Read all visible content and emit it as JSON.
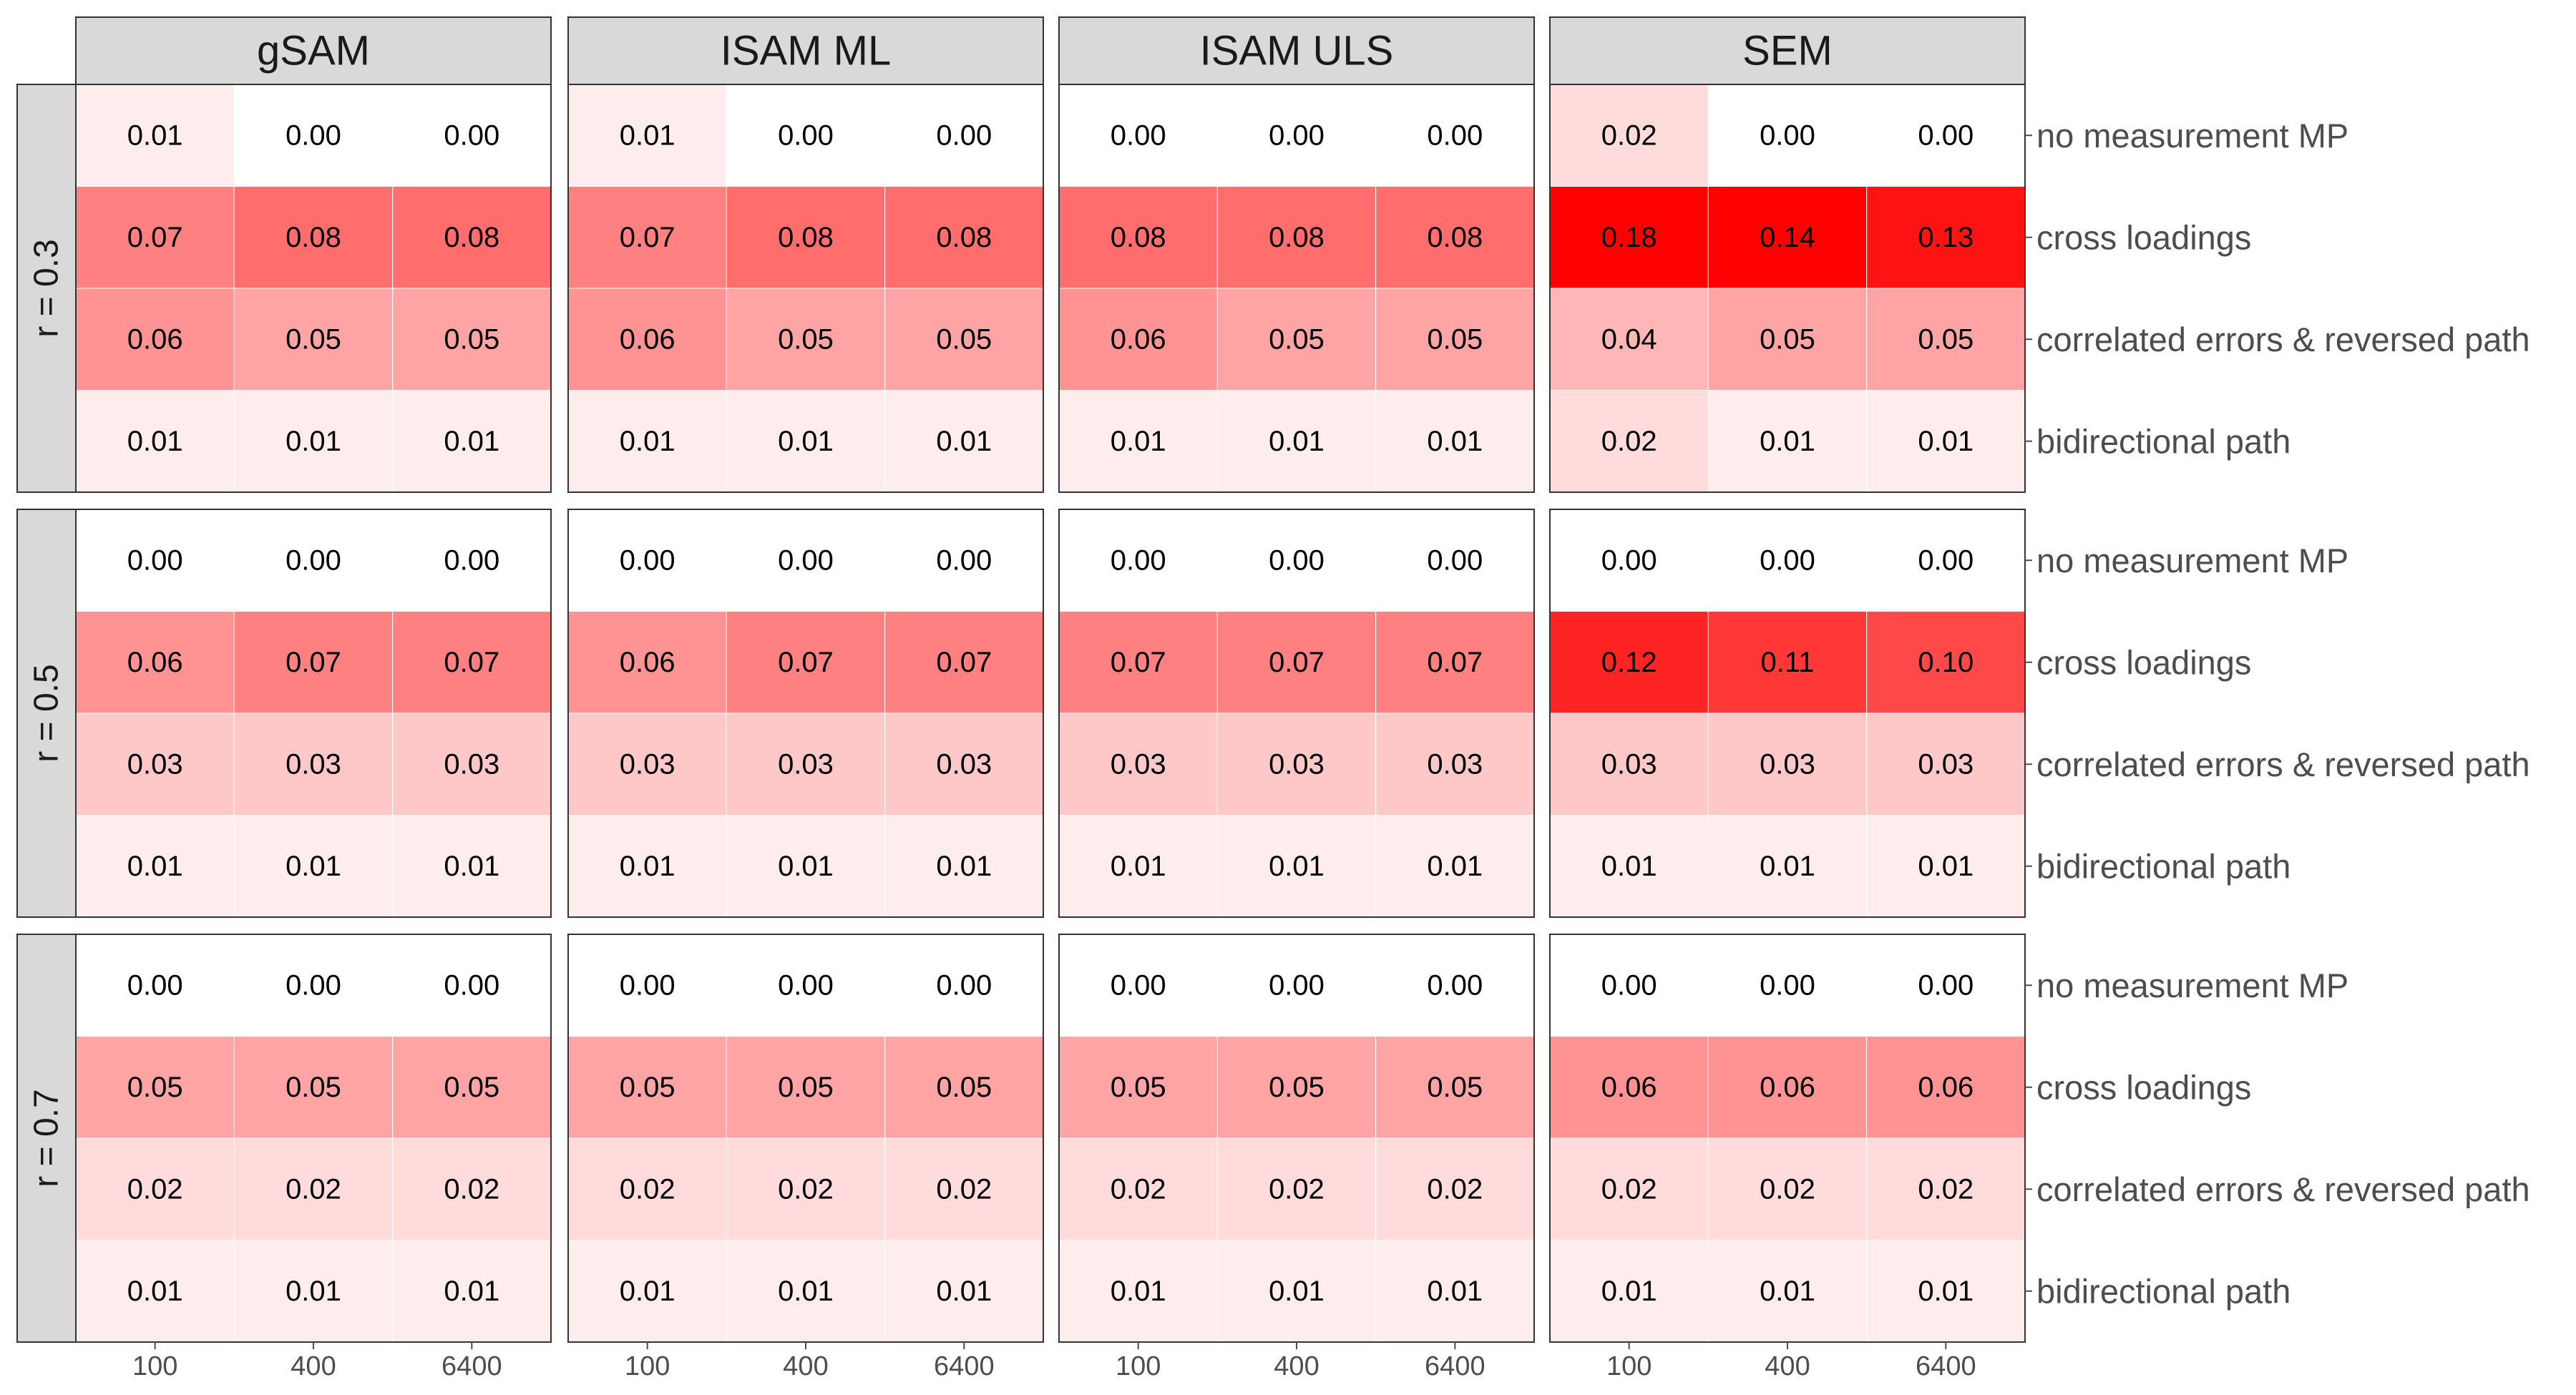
{
  "chart_data": {
    "type": "heatmap",
    "title": "",
    "xlabel": "",
    "ylabel": "",
    "column_facets": [
      "gSAM",
      "ISAM ML",
      "ISAM ULS",
      "SEM"
    ],
    "row_facets": [
      "r = 0.3",
      "r = 0.5",
      "r = 0.7"
    ],
    "x_categories": [
      "100",
      "400",
      "6400"
    ],
    "y_categories": [
      "no measurement MP",
      "cross loadings",
      "correlated errors & reversed path",
      "bidirectional path"
    ],
    "color_scale": {
      "low": "#ffffff",
      "high": "#ff0000",
      "range": [
        0,
        0.14
      ]
    },
    "grid": false,
    "cells": [
      {
        "row_facet": "r = 0.3",
        "col_facet": "gSAM",
        "values": [
          [
            0.01,
            0.0,
            0.0
          ],
          [
            0.07,
            0.08,
            0.08
          ],
          [
            0.06,
            0.05,
            0.05
          ],
          [
            0.01,
            0.01,
            0.01
          ]
        ],
        "labels": [
          [
            "0.01",
            "0.00",
            "0.00"
          ],
          [
            "0.07",
            "0.08",
            "0.08"
          ],
          [
            "0.06",
            "0.05",
            "0.05"
          ],
          [
            "0.01",
            "0.01",
            "0.01"
          ]
        ]
      },
      {
        "row_facet": "r = 0.3",
        "col_facet": "ISAM ML",
        "values": [
          [
            0.01,
            0.0,
            0.0
          ],
          [
            0.07,
            0.08,
            0.08
          ],
          [
            0.06,
            0.05,
            0.05
          ],
          [
            0.01,
            0.01,
            0.01
          ]
        ],
        "labels": [
          [
            "0.01",
            "0.00",
            "0.00"
          ],
          [
            "0.07",
            "0.08",
            "0.08"
          ],
          [
            "0.06",
            "0.05",
            "0.05"
          ],
          [
            "0.01",
            "0.01",
            "0.01"
          ]
        ]
      },
      {
        "row_facet": "r = 0.3",
        "col_facet": "ISAM ULS",
        "values": [
          [
            0.0,
            0.0,
            0.0
          ],
          [
            0.08,
            0.08,
            0.08
          ],
          [
            0.06,
            0.05,
            0.05
          ],
          [
            0.01,
            0.01,
            0.01
          ]
        ],
        "labels": [
          [
            "0.00",
            "0.00",
            "0.00"
          ],
          [
            "0.08",
            "0.08",
            "0.08"
          ],
          [
            "0.06",
            "0.05",
            "0.05"
          ],
          [
            "0.01",
            "0.01",
            "0.01"
          ]
        ]
      },
      {
        "row_facet": "r = 0.3",
        "col_facet": "SEM",
        "values": [
          [
            0.02,
            0.0,
            0.0
          ],
          [
            0.18,
            0.14,
            0.13
          ],
          [
            0.04,
            0.05,
            0.05
          ],
          [
            0.02,
            0.01,
            0.01
          ]
        ],
        "labels": [
          [
            "0.02",
            "0.00",
            "0.00"
          ],
          [
            "0.18",
            "0.14",
            "0.13"
          ],
          [
            "0.04",
            "0.05",
            "0.05"
          ],
          [
            "0.02",
            "0.01",
            "0.01"
          ]
        ]
      },
      {
        "row_facet": "r = 0.5",
        "col_facet": "gSAM",
        "values": [
          [
            0.0,
            0.0,
            0.0
          ],
          [
            0.06,
            0.07,
            0.07
          ],
          [
            0.03,
            0.03,
            0.03
          ],
          [
            0.01,
            0.01,
            0.01
          ]
        ],
        "labels": [
          [
            "0.00",
            "0.00",
            "0.00"
          ],
          [
            "0.06",
            "0.07",
            "0.07"
          ],
          [
            "0.03",
            "0.03",
            "0.03"
          ],
          [
            "0.01",
            "0.01",
            "0.01"
          ]
        ]
      },
      {
        "row_facet": "r = 0.5",
        "col_facet": "ISAM ML",
        "values": [
          [
            0.0,
            0.0,
            0.0
          ],
          [
            0.06,
            0.07,
            0.07
          ],
          [
            0.03,
            0.03,
            0.03
          ],
          [
            0.01,
            0.01,
            0.01
          ]
        ],
        "labels": [
          [
            "0.00",
            "0.00",
            "0.00"
          ],
          [
            "0.06",
            "0.07",
            "0.07"
          ],
          [
            "0.03",
            "0.03",
            "0.03"
          ],
          [
            "0.01",
            "0.01",
            "0.01"
          ]
        ]
      },
      {
        "row_facet": "r = 0.5",
        "col_facet": "ISAM ULS",
        "values": [
          [
            0.0,
            0.0,
            0.0
          ],
          [
            0.07,
            0.07,
            0.07
          ],
          [
            0.03,
            0.03,
            0.03
          ],
          [
            0.01,
            0.01,
            0.01
          ]
        ],
        "labels": [
          [
            "0.00",
            "0.00",
            "0.00"
          ],
          [
            "0.07",
            "0.07",
            "0.07"
          ],
          [
            "0.03",
            "0.03",
            "0.03"
          ],
          [
            "0.01",
            "0.01",
            "0.01"
          ]
        ]
      },
      {
        "row_facet": "r = 0.5",
        "col_facet": "SEM",
        "values": [
          [
            0.0,
            0.0,
            0.0
          ],
          [
            0.12,
            0.11,
            0.1
          ],
          [
            0.03,
            0.03,
            0.03
          ],
          [
            0.01,
            0.01,
            0.01
          ]
        ],
        "labels": [
          [
            "0.00",
            "0.00",
            "0.00"
          ],
          [
            "0.12",
            "0.11",
            "0.10"
          ],
          [
            "0.03",
            "0.03",
            "0.03"
          ],
          [
            "0.01",
            "0.01",
            "0.01"
          ]
        ]
      },
      {
        "row_facet": "r = 0.7",
        "col_facet": "gSAM",
        "values": [
          [
            0.0,
            0.0,
            0.0
          ],
          [
            0.05,
            0.05,
            0.05
          ],
          [
            0.02,
            0.02,
            0.02
          ],
          [
            0.01,
            0.01,
            0.01
          ]
        ],
        "labels": [
          [
            "0.00",
            "0.00",
            "0.00"
          ],
          [
            "0.05",
            "0.05",
            "0.05"
          ],
          [
            "0.02",
            "0.02",
            "0.02"
          ],
          [
            "0.01",
            "0.01",
            "0.01"
          ]
        ]
      },
      {
        "row_facet": "r = 0.7",
        "col_facet": "ISAM ML",
        "values": [
          [
            0.0,
            0.0,
            0.0
          ],
          [
            0.05,
            0.05,
            0.05
          ],
          [
            0.02,
            0.02,
            0.02
          ],
          [
            0.01,
            0.01,
            0.01
          ]
        ],
        "labels": [
          [
            "0.00",
            "0.00",
            "0.00"
          ],
          [
            "0.05",
            "0.05",
            "0.05"
          ],
          [
            "0.02",
            "0.02",
            "0.02"
          ],
          [
            "0.01",
            "0.01",
            "0.01"
          ]
        ]
      },
      {
        "row_facet": "r = 0.7",
        "col_facet": "ISAM ULS",
        "values": [
          [
            0.0,
            0.0,
            0.0
          ],
          [
            0.05,
            0.05,
            0.05
          ],
          [
            0.02,
            0.02,
            0.02
          ],
          [
            0.01,
            0.01,
            0.01
          ]
        ],
        "labels": [
          [
            "0.00",
            "0.00",
            "0.00"
          ],
          [
            "0.05",
            "0.05",
            "0.05"
          ],
          [
            "0.02",
            "0.02",
            "0.02"
          ],
          [
            "0.01",
            "0.01",
            "0.01"
          ]
        ]
      },
      {
        "row_facet": "r = 0.7",
        "col_facet": "SEM",
        "values": [
          [
            0.0,
            0.0,
            0.0
          ],
          [
            0.06,
            0.06,
            0.06
          ],
          [
            0.02,
            0.02,
            0.02
          ],
          [
            0.01,
            0.01,
            0.01
          ]
        ],
        "labels": [
          [
            "0.00",
            "0.00",
            "0.00"
          ],
          [
            "0.06",
            "0.06",
            "0.06"
          ],
          [
            "0.02",
            "0.02",
            "0.02"
          ],
          [
            "0.01",
            "0.01",
            "0.01"
          ]
        ]
      }
    ]
  },
  "colors": {
    "strip_fill": "#d9d9d9",
    "panel_border": "#333333",
    "cell_separator": "#ffffff",
    "tick_text": "#4d4d4d",
    "strip_text": "#1a1a1a"
  }
}
